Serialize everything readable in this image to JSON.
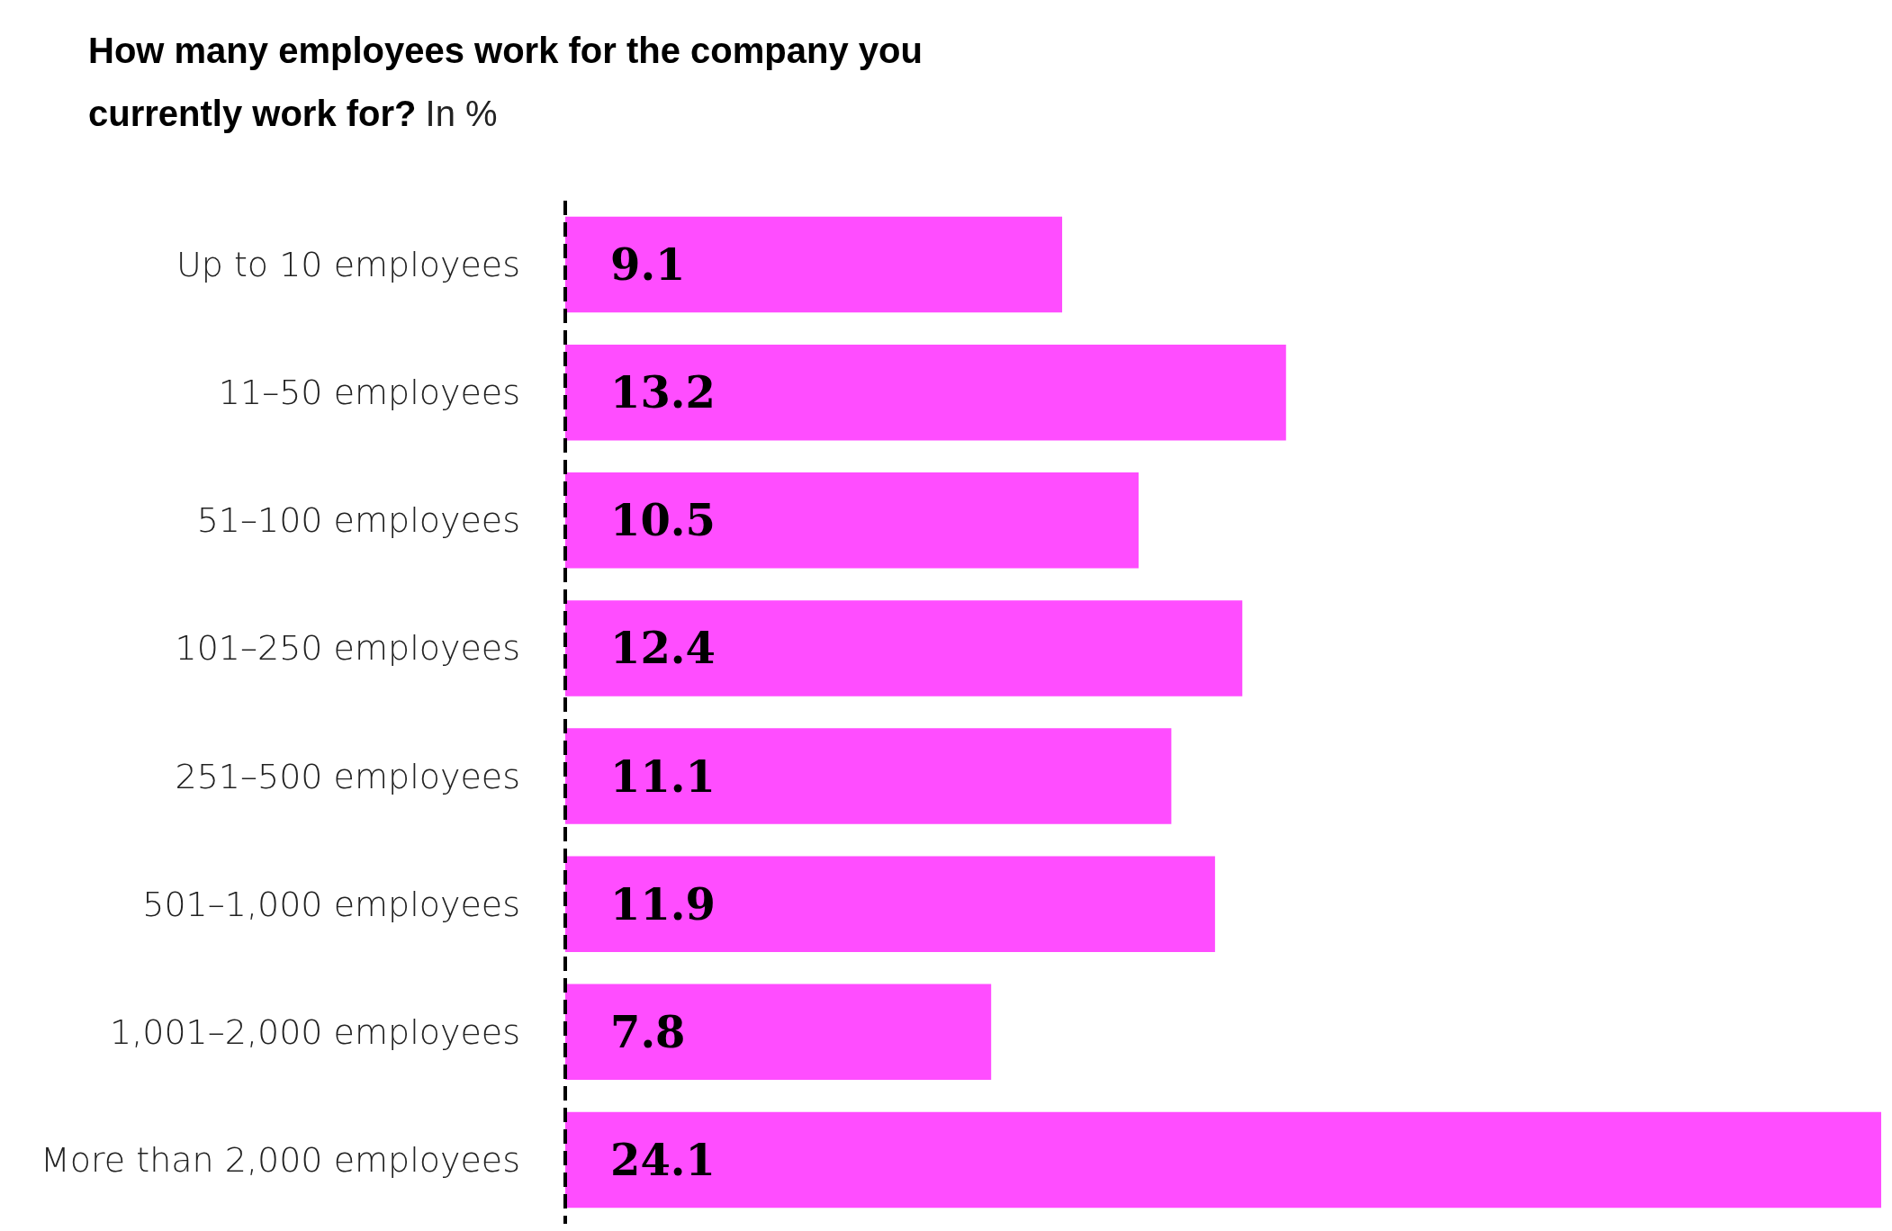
{
  "chart_data": {
    "type": "bar",
    "orientation": "horizontal",
    "title": "How many employees work for the company you currently work for?",
    "subtitle": "In %",
    "categories": [
      "Up to 10 employees",
      "11–50 employees",
      "51–100 employees",
      "101–250 employees",
      "251–500 employees",
      "501–1,000 employees",
      "1,001–2,000 employees",
      "More than 2,000 employees"
    ],
    "values": [
      9.1,
      13.2,
      10.5,
      12.4,
      11.1,
      11.9,
      7.8,
      24.1
    ],
    "color": "#ff4dff",
    "data_labels": true,
    "ref_lines": [
      {
        "axis": "x",
        "value": 0,
        "line_style": "dashed",
        "color": "#000000"
      }
    ]
  }
}
